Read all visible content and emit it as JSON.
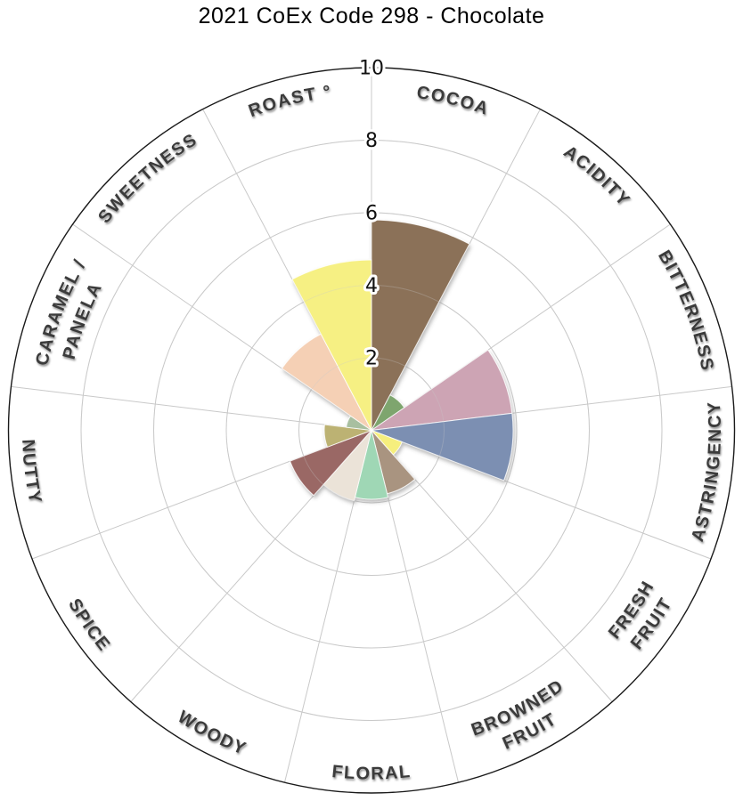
{
  "title": "2021 CoEx Code 298 - Chocolate",
  "chart_data": {
    "type": "polar_bar",
    "title": "2021 CoEx Code 298 - Chocolate",
    "direction": "clockwise",
    "start": "top",
    "sector_count": 13,
    "sector_angle_deg": 27.69,
    "rlim": [
      0,
      10
    ],
    "radial_ticks": [
      "2",
      "4",
      "6",
      "8",
      "10"
    ],
    "grid_rings": [
      2,
      4,
      6,
      8,
      10
    ],
    "grid": true,
    "categories": [
      "COCOA",
      "ACIDITY",
      "BITTERNESS",
      "ASTRINGENCY",
      "FRESH FRUIT",
      "BROWNED FRUIT",
      "FLORAL",
      "WOODY",
      "SPICE",
      "NUTTY",
      "CARAMEL / PANELA",
      "SWEETNESS",
      "ROAST °"
    ],
    "label_lines": [
      [
        "COCOA"
      ],
      [
        "ACIDITY"
      ],
      [
        "BITTERNESS"
      ],
      [
        "ASTRINGENCY"
      ],
      [
        "FRESH",
        "FRUIT"
      ],
      [
        "BROWNED",
        "FRUIT"
      ],
      [
        "FLORAL"
      ],
      [
        "WOODY"
      ],
      [
        "SPICE"
      ],
      [
        "NUTTY"
      ],
      [
        "CARAMEL /",
        "PANELA"
      ],
      [
        "SWEETNESS"
      ],
      [
        "ROAST °"
      ]
    ],
    "values": [
      5.8,
      1.1,
      3.9,
      3.9,
      0.9,
      1.8,
      1.9,
      2.0,
      2.4,
      1.3,
      0.7,
      3.0,
      4.7
    ],
    "colors": [
      "#8b7158",
      "#7ea56e",
      "#cda4b4",
      "#7b8fb2",
      "#f6ef7d",
      "#a99480",
      "#9fd7b5",
      "#ebe3d8",
      "#9a6765",
      "#bcb273",
      "#a8bfa0",
      "#f5d0b5",
      "#f6f083"
    ],
    "styles": {
      "grid_color": "#c9c9c9",
      "outer_circle_color": "#1a1a1a",
      "label_color": "#3b3b3b",
      "tick_color": "#111111",
      "background": "#ffffff"
    }
  }
}
